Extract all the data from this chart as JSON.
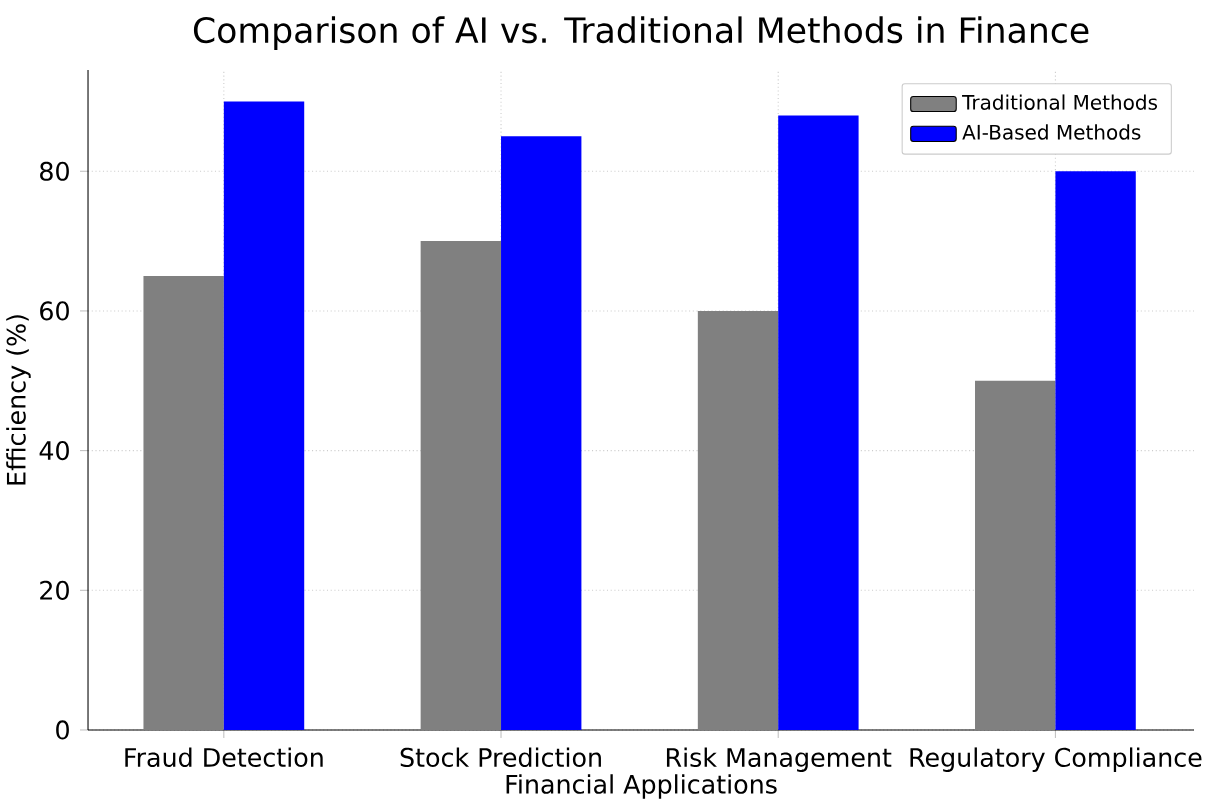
{
  "chart_data": {
    "type": "bar",
    "title": "Comparison of AI vs. Traditional Methods in Finance",
    "xlabel": "Financial Applications",
    "ylabel": "Efficiency (%)",
    "categories": [
      "Fraud Detection",
      "Stock Prediction",
      "Risk Management",
      "Regulatory Compliance"
    ],
    "series": [
      {
        "name": "Traditional Methods",
        "color": "#808080",
        "values": [
          65,
          70,
          60,
          50
        ]
      },
      {
        "name": "AI-Based Methods",
        "color": "#0000ff",
        "values": [
          90,
          85,
          88,
          80
        ]
      }
    ],
    "ylim": [
      0,
      94.5
    ],
    "yticks": [
      0,
      20,
      40,
      60,
      80
    ],
    "grid": true,
    "legend": "top right"
  }
}
